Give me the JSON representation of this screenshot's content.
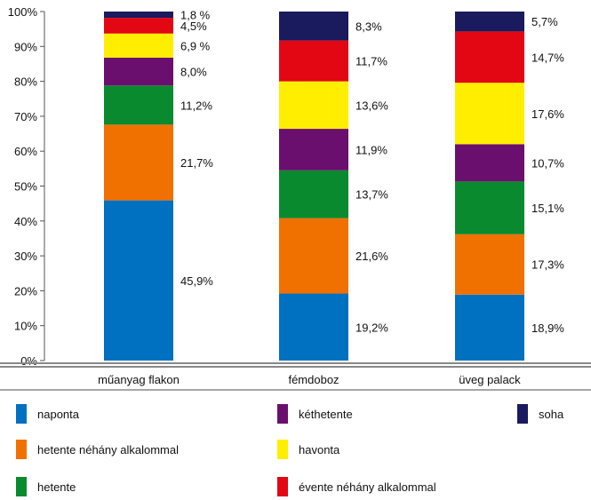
{
  "chart_data": {
    "type": "bar",
    "stacked": true,
    "percent": true,
    "title": "",
    "xlabel": "",
    "ylabel": "",
    "ylim": [
      0,
      100
    ],
    "yticks": [
      "0%",
      "10%",
      "20%",
      "30%",
      "40%",
      "50%",
      "60%",
      "70%",
      "80%",
      "90%",
      "100%"
    ],
    "categories": [
      "műanyag flakon",
      "fémdoboz",
      "üveg palack"
    ],
    "series": [
      {
        "name": "naponta",
        "color": "#0070c0",
        "values": [
          45.9,
          19.2,
          18.9
        ],
        "labels": [
          "45,9%",
          "19,2%",
          "18,9%"
        ]
      },
      {
        "name": "hetente néhány alkalommal",
        "color": "#f07000",
        "values": [
          21.7,
          21.6,
          17.3
        ],
        "labels": [
          "21,7%",
          "21,6%",
          "17,3%"
        ]
      },
      {
        "name": "hetente",
        "color": "#0a8a2e",
        "values": [
          11.2,
          13.7,
          15.1
        ],
        "labels": [
          "11,2%",
          "13,7%",
          "15,1%"
        ]
      },
      {
        "name": "kéthetente",
        "color": "#6b0f6e",
        "values": [
          8.0,
          11.9,
          10.7
        ],
        "labels": [
          "8,0%",
          "11,9%",
          "10,7%"
        ]
      },
      {
        "name": "havonta",
        "color": "#ffee00",
        "values": [
          6.9,
          13.6,
          17.6
        ],
        "labels": [
          "6,9 %",
          "13,6%",
          "17,6%"
        ]
      },
      {
        "name": "évente néhány alkalommal",
        "color": "#e30613",
        "values": [
          4.5,
          11.7,
          14.7
        ],
        "labels": [
          "4,5%",
          "11,7%",
          "14,7%"
        ]
      },
      {
        "name": "soha",
        "color": "#1a1a5e",
        "values": [
          1.8,
          8.3,
          5.7
        ],
        "labels": [
          "1,8 %",
          "8,3%",
          "5,7%"
        ]
      }
    ],
    "legend": {
      "placement": "bottom",
      "columns": [
        [
          "naponta",
          "hetente néhány alkalommal",
          "hetente"
        ],
        [
          "kéthetente",
          "havonta",
          "évente néhány alkalommal"
        ],
        [
          "soha"
        ]
      ]
    },
    "grid": false
  }
}
